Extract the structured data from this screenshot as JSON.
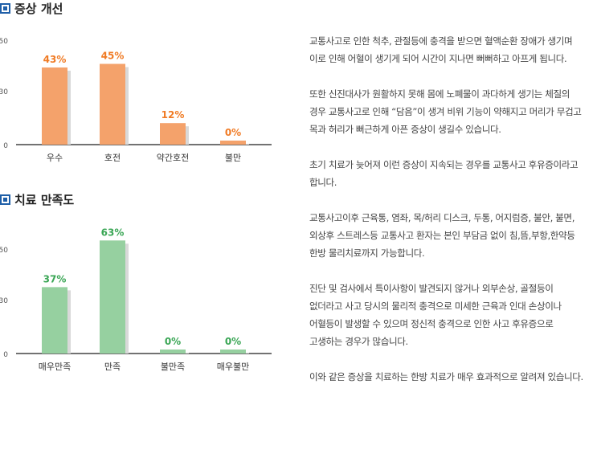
{
  "chart_data": [
    {
      "type": "bar",
      "title": "증상 개선",
      "categories": [
        "우수",
        "호전",
        "약간호전",
        "불만"
      ],
      "values": [
        43,
        45,
        12,
        0
      ],
      "value_labels": [
        "43%",
        "45%",
        "12%",
        "0%"
      ],
      "ytick_labels": [
        "0",
        "30",
        "50"
      ],
      "ylim": [
        0,
        58
      ],
      "grid": false,
      "color": "#f4a26b",
      "label_color": "#f07b25"
    },
    {
      "type": "bar",
      "title": "치료 만족도",
      "categories": [
        "매우만족",
        "만족",
        "불만족",
        "매우불만"
      ],
      "values": [
        37,
        63,
        0,
        0
      ],
      "value_labels": [
        "37%",
        "63%",
        "0%",
        "0%"
      ],
      "ytick_labels": [
        "0",
        "30",
        "50"
      ],
      "ylim": [
        0,
        80
      ],
      "grid": false,
      "color": "#96d0a0",
      "label_color": "#3aa655"
    }
  ],
  "description": {
    "paragraphs": [
      [
        "교통사고로 인한 척추, 관절등에 충격을 받으면 혈액순환 장애가 생기며",
        "이로 인해 어혈이 생기게 되어 시간이 지나면 뻐뻐하고 아프게 됩니다."
      ],
      [
        "또한 신진대사가 원활하지 못해 몸에 노폐물이 과다하게 생기는 체질의",
        "경우 교통사고로 인해 “담음”이 생겨 비위 기능이 약해지고 머리가 무겁고",
        "목과 허리가 뻐근하게 아픈 증상이 생길수 있습니다."
      ],
      [
        "초기 치료가 늦어져 이런 증상이 지속되는 경우를 교통사고 후유증이라고",
        "합니다."
      ],
      [
        "교통사고이후 근육통, 염좌, 목/허리 디스크, 두통, 어지럼증, 불안, 불면,",
        "외상후 스트레스등 교통사고 환자는 본인 부담금 없이 침,뜸,부항,한약등",
        "한방 물리치료까지 가능합니다."
      ],
      [
        "진단 및 검사에서 특이사항이 발견되지 않거나 외부손상, 골절등이",
        "없더라고 사고 당시의 물리적 충격으로 미세한 근육과 인대 손상이나",
        "어혈등이 발생할 수 있으며 정신적 충격으로 인한 사고 후유증으로",
        "고생하는 경우가 많습니다."
      ],
      [
        "이와 같은 증상을 치료하는 한방 치료가 매우 효과적으로 알려져 있습니다."
      ]
    ]
  }
}
